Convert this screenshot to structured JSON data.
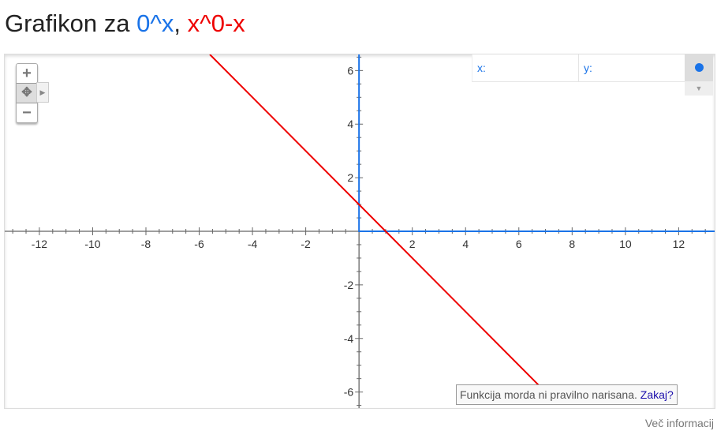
{
  "title": {
    "prefix": "Grafikon za ",
    "f1": "0^x",
    "sep": ", ",
    "f2": "x^0-x"
  },
  "colors": {
    "f1": "#1a73e8",
    "f2": "#ee0000",
    "axis": "#666"
  },
  "controls": {
    "zoom_in": "+",
    "pan": "✥",
    "zoom_out": "−",
    "pan_arrow": "▶",
    "dropdown": "▼",
    "x_label": "x:",
    "y_label": "y:"
  },
  "warning": {
    "text": "Funkcija morda ni pravilno narisana. ",
    "link": "Zakaj?"
  },
  "more_info": "Več informacij",
  "chart_data": {
    "type": "line",
    "xlim": [
      -13.3,
      13.35
    ],
    "ylim": [
      -6.6,
      6.6
    ],
    "x_ticks": [
      -12,
      -10,
      -8,
      -6,
      -4,
      -2,
      2,
      4,
      6,
      8,
      10,
      12
    ],
    "y_ticks": [
      -6,
      -4,
      -2,
      2,
      4,
      6
    ],
    "grid": false,
    "series": [
      {
        "name": "0^x",
        "color": "#1a73e8",
        "points": [
          [
            0,
            6.6
          ],
          [
            0,
            0
          ],
          [
            13.35,
            0
          ]
        ]
      },
      {
        "name": "x^0-x",
        "color": "#ee0000",
        "points": [
          [
            -5.6,
            6.6
          ],
          [
            6.8,
            -5.8
          ]
        ]
      }
    ]
  }
}
